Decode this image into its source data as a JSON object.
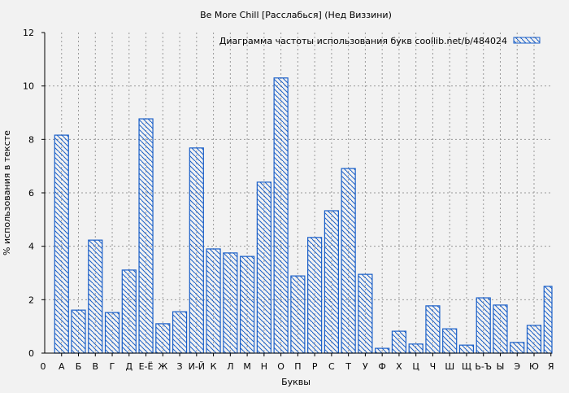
{
  "chart_data": {
    "type": "bar",
    "title": "Be More Chill [Расслабься] (Нед Виззини)",
    "xlabel": "Буквы",
    "ylabel": "% использования в тексте",
    "legend": {
      "label": "Диаграмма частоты использования букв  coollib.net/b/484024",
      "placement": "top-right"
    },
    "x_origin_label": "0",
    "categories": [
      "А",
      "Б",
      "В",
      "Г",
      "Д",
      "Е-Ё",
      "Ж",
      "З",
      "И-Й",
      "К",
      "Л",
      "М",
      "Н",
      "О",
      "П",
      "Р",
      "С",
      "Т",
      "У",
      "Ф",
      "Х",
      "Ц",
      "Ч",
      "Ш",
      "Щ",
      "Ь-Ъ",
      "Ы",
      "Э",
      "Ю",
      "Я"
    ],
    "values": [
      8.16,
      1.61,
      4.23,
      1.52,
      3.11,
      8.77,
      1.1,
      1.55,
      7.68,
      3.9,
      3.75,
      3.62,
      6.4,
      10.3,
      2.89,
      4.33,
      5.33,
      6.91,
      2.95,
      0.18,
      0.82,
      0.34,
      1.77,
      0.91,
      0.3,
      2.07,
      1.8,
      0.4,
      1.04,
      2.5
    ],
    "ylim": [
      0,
      12
    ],
    "yticks": [
      0,
      2,
      4,
      6,
      8,
      10,
      12
    ],
    "grid": true,
    "bar_color": "#1a5fc8",
    "fill": "diagonal-hatch"
  }
}
